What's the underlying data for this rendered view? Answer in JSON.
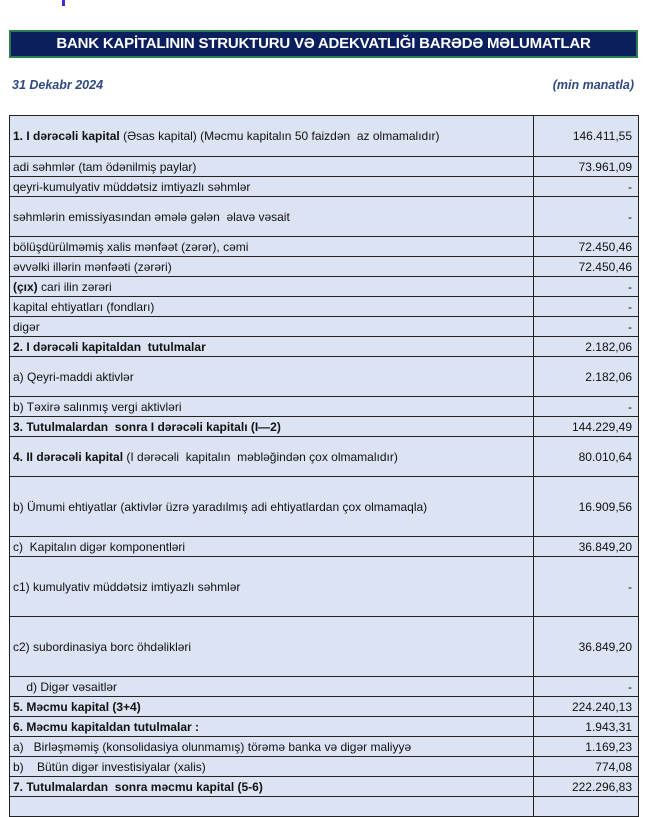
{
  "title": "BANK KAPİTALININ STRUKTURU VƏ ADEKVATLIĞI BARƏDƏ MƏLUMATLAR",
  "date": "31 Dekabr 2024",
  "unit": "(min manatla)",
  "rows": [
    {
      "bold": "1. I dərəcəli kapital",
      "text": " (Əsas kapital) (Məcmu kapitalın 50 faizdən  az olmamalıdır)",
      "value": "146.411,55"
    },
    {
      "bold": "",
      "text": "adi səhmlər (tam ödənilmiş paylar)",
      "value": "73.961,09"
    },
    {
      "bold": "",
      "text": "qeyri-kumulyativ müddətsiz imtiyazlı səhmlər",
      "value": "-"
    },
    {
      "bold": "",
      "text": "səhmlərin emissiyasından əmələ gələn  əlavə vəsait",
      "value": "-"
    },
    {
      "bold": "",
      "text": "bölüşdürülməmiş xalis mənfəət (zərər), cəmi",
      "value": "72.450,46"
    },
    {
      "bold": "",
      "text": "əvvəlki illərin mənfəəti (zərəri)",
      "value": "72.450,46"
    },
    {
      "bold": "(çıx)",
      "text": " cari ilin zərəri",
      "value": "-"
    },
    {
      "bold": "",
      "text": "kapital ehtiyatları (fondları)",
      "value": "-"
    },
    {
      "bold": "",
      "text": "digər",
      "value": "-"
    },
    {
      "bold": "2. I dərəcəli kapitaldan  tutulmalar",
      "text": "",
      "value": "2.182,06"
    },
    {
      "bold": "",
      "text": "a) Qeyri-maddi aktivlər",
      "value": "2.182,06"
    },
    {
      "bold": "",
      "text": "b) Təxirə salınmış vergi aktivləri",
      "value": "-"
    },
    {
      "bold": "3. Tutulmalardan  sonra I dərəcəli kapitalı (I—2)",
      "text": "",
      "value": "144.229,49"
    },
    {
      "bold": "4. II dərəcəli kapital",
      "text": " (I dərəcəli  kapitalın  məbləğindən çox olmamalıdır)",
      "value": "80.010,64"
    },
    {
      "bold": "",
      "text": "b) Ümumi ehtiyatlar (aktivlər üzrə yaradılmış adi ehtiyatlardan çox olmamaqla)",
      "value": "16.909,56"
    },
    {
      "bold": "",
      "text": "c)  Kapitalın digər komponentləri",
      "value": "36.849,20"
    },
    {
      "bold": "",
      "text": "c1) kumulyativ müddətsiz imtiyazlı səhmlər",
      "value": "-"
    },
    {
      "bold": "",
      "text": "c2) subordinasiya borc öhdəlikləri",
      "value": "36.849,20"
    },
    {
      "bold": "",
      "text": "    d) Digər vəsaitlər",
      "value": "-"
    },
    {
      "bold": "5. Məcmu kapital (3+4)",
      "text": "",
      "value": "224.240,13"
    },
    {
      "bold": "6. Məcmu kapitaldan tutulmalar :",
      "text": "",
      "value": "1.943,31"
    },
    {
      "bold": "",
      "text": "a)   Birləşməmiş (konsolidasiya olunmamış) törəmə banka və digər maliyyə",
      "value": "1.169,23"
    },
    {
      "bold": "",
      "text": "b)    Bütün digər investisiyalar (xalis)",
      "value": "774,08"
    },
    {
      "bold": "7. Tutulmalardan  sonra məcmu kapital (5-6)",
      "text": "",
      "value": "222.296,83"
    },
    {
      "bold": "",
      "text": "",
      "value": ""
    }
  ]
}
